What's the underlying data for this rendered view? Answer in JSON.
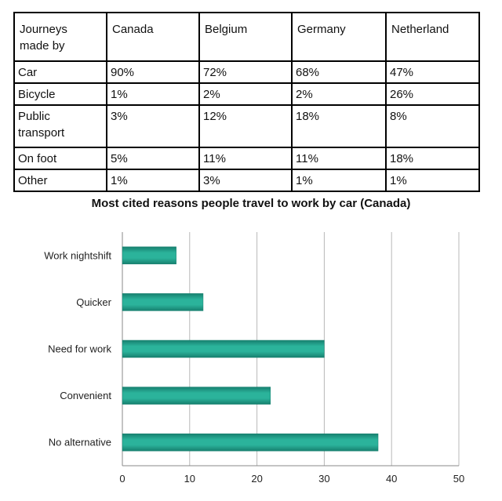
{
  "table": {
    "columns": [
      "Journeys made by",
      "Canada",
      "Belgium",
      "Germany",
      "Netherland"
    ],
    "rows": [
      [
        "Car",
        "90%",
        "72%",
        "68%",
        "47%"
      ],
      [
        "Bicycle",
        "1%",
        "2%",
        "2%",
        "26%"
      ],
      [
        "Public transport",
        "3%",
        "12%",
        "18%",
        "8%"
      ],
      [
        "On foot",
        "5%",
        "11%",
        "11%",
        "18%"
      ],
      [
        "Other",
        "1%",
        "3%",
        "1%",
        "1%"
      ]
    ]
  },
  "chart_data": {
    "type": "bar",
    "orientation": "horizontal",
    "title": "Most cited reasons people travel to work by car (Canada)",
    "categories": [
      "Work nightshift",
      "Quicker",
      "Need for work",
      "Convenient",
      "No alternative"
    ],
    "values": [
      8,
      12,
      30,
      22,
      38
    ],
    "xlim": [
      0,
      50
    ],
    "xticks": [
      0,
      10,
      20,
      30,
      40,
      50
    ],
    "xlabel": "",
    "ylabel": "",
    "grid": "vertical",
    "colors": {
      "bar": "#2bb39b",
      "bar_dark": "#17806f",
      "grid": "#b8b8b8",
      "axis": "#888888"
    }
  }
}
